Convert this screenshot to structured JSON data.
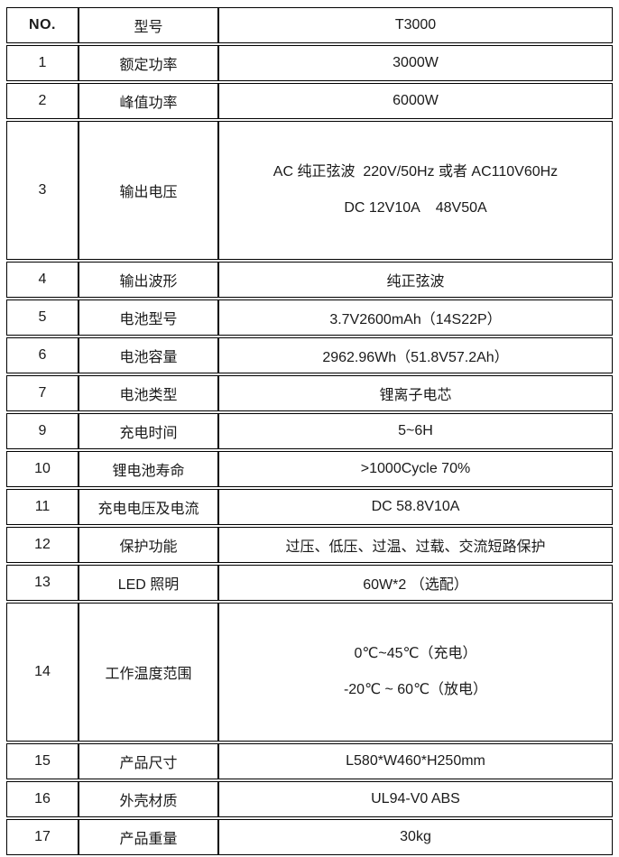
{
  "table": {
    "header": {
      "no": "NO.",
      "label": "型号",
      "value": "T3000"
    },
    "rows": [
      {
        "no": "1",
        "label": "额定功率",
        "value": "3000W"
      },
      {
        "no": "2",
        "label": "峰值功率",
        "value": "6000W"
      },
      {
        "no": "3",
        "label": "输出电压",
        "lines": [
          "AC 纯正弦波  220V/50Hz 或者 AC110V60Hz",
          "DC 12V10A    48V50A"
        ]
      },
      {
        "no": "4",
        "label": "输出波形",
        "value": "纯正弦波"
      },
      {
        "no": "5",
        "label": "电池型号",
        "value": "3.7V2600mAh（14S22P）"
      },
      {
        "no": "6",
        "label": "电池容量",
        "value": "2962.96Wh（51.8V57.2Ah）"
      },
      {
        "no": "7",
        "label": "电池类型",
        "value": "锂离子电芯"
      },
      {
        "no": "9",
        "label": "充电时间",
        "value": "5~6H"
      },
      {
        "no": "10",
        "label": "锂电池寿命",
        "value": ">1000Cycle 70%"
      },
      {
        "no": "11",
        "label": "充电电压及电流",
        "value": "DC 58.8V10A"
      },
      {
        "no": "12",
        "label": "保护功能",
        "value": "过压、低压、过温、过载、交流短路保护"
      },
      {
        "no": "13",
        "label": "LED 照明",
        "value": "60W*2 （选配）"
      },
      {
        "no": "14",
        "label": "工作温度范围",
        "lines": [
          "0℃~45℃（充电）",
          "-20℃ ~ 60℃（放电）"
        ]
      },
      {
        "no": "15",
        "label": "产品尺寸",
        "value": "L580*W460*H250mm"
      },
      {
        "no": "16",
        "label": "外壳材质",
        "value": "UL94-V0 ABS"
      },
      {
        "no": "17",
        "label": "产品重量",
        "value": "30kg"
      }
    ]
  },
  "colors": {
    "border": "#000000",
    "text": "#1a1a1a",
    "background": "#ffffff"
  }
}
